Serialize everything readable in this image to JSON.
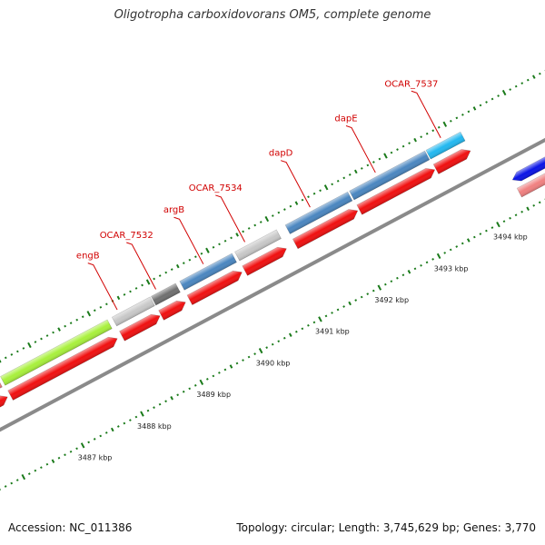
{
  "title": "Oligotropha carboxidovorans OM5, complete genome",
  "footer": {
    "accession": "Accession: NC_011386",
    "stats": "Topology: circular; Length: 3,745,629 bp; Genes: 3,770"
  },
  "scale": {
    "unit": "kbp",
    "ticks": [
      {
        "kbp": 3487,
        "label": "3487 kbp"
      },
      {
        "kbp": 3488,
        "label": "3488 kbp"
      },
      {
        "kbp": 3489,
        "label": "3489 kbp"
      },
      {
        "kbp": 3490,
        "label": "3490 kbp"
      },
      {
        "kbp": 3491,
        "label": "3491 kbp"
      },
      {
        "kbp": 3492,
        "label": "3492 kbp"
      },
      {
        "kbp": 3493,
        "label": "3493 kbp"
      },
      {
        "kbp": 3494,
        "label": "3494 kbp"
      }
    ]
  },
  "features": {
    "outer_genes": [
      {
        "start_kbp": 3486.05,
        "end_kbp": 3486.35,
        "color": "#f08080"
      },
      {
        "start_kbp": 3486.4,
        "end_kbp": 3488.2,
        "color": "#a8f03c"
      },
      {
        "start_kbp": 3488.28,
        "end_kbp": 3488.92,
        "color": "#c8c8c8"
      },
      {
        "start_kbp": 3488.94,
        "end_kbp": 3489.35,
        "color": "#707070"
      },
      {
        "start_kbp": 3489.42,
        "end_kbp": 3490.3,
        "color": "#4a86c0"
      },
      {
        "start_kbp": 3490.35,
        "end_kbp": 3491.05,
        "color": "#c8c8c8"
      },
      {
        "start_kbp": 3491.2,
        "end_kbp": 3492.25,
        "color": "#4a86c0"
      },
      {
        "start_kbp": 3492.28,
        "end_kbp": 3493.55,
        "color": "#4a86c0"
      },
      {
        "start_kbp": 3493.57,
        "end_kbp": 3494.15,
        "color": "#22b8f0"
      }
    ],
    "forward_cds": [
      {
        "start_kbp": 3486.05,
        "end_kbp": 3486.35
      },
      {
        "start_kbp": 3486.4,
        "end_kbp": 3488.2
      },
      {
        "start_kbp": 3488.28,
        "end_kbp": 3488.92
      },
      {
        "start_kbp": 3488.94,
        "end_kbp": 3489.35
      },
      {
        "start_kbp": 3489.42,
        "end_kbp": 3490.3
      },
      {
        "start_kbp": 3490.35,
        "end_kbp": 3491.05
      },
      {
        "start_kbp": 3491.2,
        "end_kbp": 3492.25
      },
      {
        "start_kbp": 3492.28,
        "end_kbp": 3493.55
      },
      {
        "start_kbp": 3493.57,
        "end_kbp": 3494.15
      }
    ],
    "reverse_genes": [
      {
        "start_kbp": 3494.5,
        "end_kbp": 3495.2,
        "color": "#0a14e6"
      }
    ],
    "reverse_cds": [
      {
        "start_kbp": 3494.5,
        "end_kbp": 3495.2,
        "color": "#f08080"
      }
    ]
  },
  "gene_labels": [
    {
      "text": "engB",
      "kbp": 3488.4
    },
    {
      "text": "OCAR_7532",
      "kbp": 3489.05
    },
    {
      "text": "argB",
      "kbp": 3489.85
    },
    {
      "text": "OCAR_7534",
      "kbp": 3490.55
    },
    {
      "text": "dapD",
      "kbp": 3491.65
    },
    {
      "text": "dapE",
      "kbp": 3492.75
    },
    {
      "text": "OCAR_7537",
      "kbp": 3493.85
    }
  ],
  "colors": {
    "backbone": "#8a8a8a",
    "tick": "#1a7a1a",
    "cds": "#f01010",
    "label_line": "#d10000"
  }
}
